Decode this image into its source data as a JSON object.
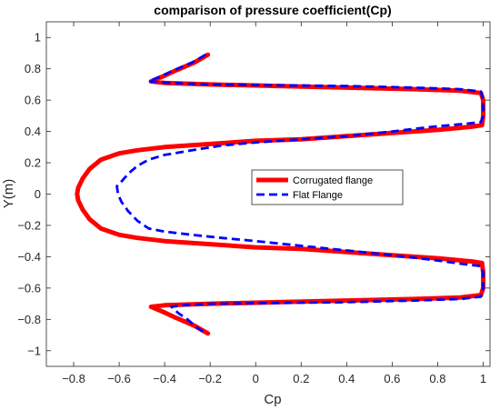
{
  "chart_data": {
    "type": "line",
    "title": "comparison of pressure coefficient(Cp)",
    "xlabel": "Cp",
    "ylabel": "Y(m)",
    "xlim": [
      -0.92,
      1.03
    ],
    "ylim": [
      -1.1,
      1.1
    ],
    "xticks": [
      -0.8,
      -0.6,
      -0.4,
      -0.2,
      0,
      0.2,
      0.4,
      0.6,
      0.8,
      1
    ],
    "xtick_labels": [
      "−0.8",
      "−0.6",
      "−0.4",
      "−0.2",
      "0",
      "0.2",
      "0.4",
      "0.6",
      "0.8",
      "1"
    ],
    "yticks": [
      1,
      0.8,
      0.6,
      0.4,
      0.2,
      0,
      -0.2,
      -0.4,
      -0.6,
      -0.8,
      -1
    ],
    "ytick_labels": [
      "1",
      "0.8",
      "0.6",
      "0.4",
      "0.2",
      "0",
      "−0.2",
      "−0.4",
      "−0.6",
      "−0.8",
      "−1"
    ],
    "grid": false,
    "legend_position": "center-right",
    "series": [
      {
        "name": "Corrugated flange",
        "color": "#ff0000",
        "style": "solid",
        "points": [
          [
            -0.21,
            0.89
          ],
          [
            -0.27,
            0.84
          ],
          [
            -0.35,
            0.79
          ],
          [
            -0.41,
            0.75
          ],
          [
            -0.46,
            0.72
          ],
          [
            -0.4,
            0.71
          ],
          [
            -0.2,
            0.7
          ],
          [
            0.1,
            0.69
          ],
          [
            0.4,
            0.68
          ],
          [
            0.7,
            0.67
          ],
          [
            0.9,
            0.66
          ],
          [
            0.99,
            0.645
          ],
          [
            1.0,
            0.6
          ],
          [
            1.0,
            0.5
          ],
          [
            0.995,
            0.44
          ],
          [
            0.95,
            0.43
          ],
          [
            0.8,
            0.41
          ],
          [
            0.6,
            0.39
          ],
          [
            0.4,
            0.37
          ],
          [
            0.2,
            0.35
          ],
          [
            0.0,
            0.34
          ],
          [
            -0.2,
            0.32
          ],
          [
            -0.4,
            0.3
          ],
          [
            -0.52,
            0.28
          ],
          [
            -0.6,
            0.26
          ],
          [
            -0.68,
            0.22
          ],
          [
            -0.73,
            0.16
          ],
          [
            -0.76,
            0.1
          ],
          [
            -0.78,
            0.04
          ],
          [
            -0.785,
            0.0
          ],
          [
            -0.78,
            -0.04
          ],
          [
            -0.76,
            -0.1
          ],
          [
            -0.73,
            -0.16
          ],
          [
            -0.68,
            -0.22
          ],
          [
            -0.6,
            -0.26
          ],
          [
            -0.52,
            -0.28
          ],
          [
            -0.4,
            -0.3
          ],
          [
            -0.2,
            -0.32
          ],
          [
            0.0,
            -0.34
          ],
          [
            0.2,
            -0.35
          ],
          [
            0.4,
            -0.37
          ],
          [
            0.6,
            -0.39
          ],
          [
            0.8,
            -0.41
          ],
          [
            0.95,
            -0.43
          ],
          [
            0.995,
            -0.44
          ],
          [
            1.0,
            -0.5
          ],
          [
            1.0,
            -0.6
          ],
          [
            0.99,
            -0.645
          ],
          [
            0.9,
            -0.66
          ],
          [
            0.7,
            -0.67
          ],
          [
            0.4,
            -0.68
          ],
          [
            0.1,
            -0.69
          ],
          [
            -0.2,
            -0.7
          ],
          [
            -0.4,
            -0.71
          ],
          [
            -0.46,
            -0.72
          ],
          [
            -0.41,
            -0.75
          ],
          [
            -0.35,
            -0.79
          ],
          [
            -0.27,
            -0.84
          ],
          [
            -0.21,
            -0.89
          ]
        ]
      },
      {
        "name": "Flat Flange",
        "color": "#0000ff",
        "style": "dashed",
        "points": [
          [
            -0.22,
            0.89
          ],
          [
            -0.28,
            0.84
          ],
          [
            -0.36,
            0.79
          ],
          [
            -0.42,
            0.75
          ],
          [
            -0.47,
            0.72
          ],
          [
            -0.38,
            0.71
          ],
          [
            -0.2,
            0.7
          ],
          [
            0.1,
            0.695
          ],
          [
            0.4,
            0.69
          ],
          [
            0.7,
            0.68
          ],
          [
            0.9,
            0.67
          ],
          [
            0.99,
            0.655
          ],
          [
            1.0,
            0.6
          ],
          [
            1.0,
            0.5
          ],
          [
            0.99,
            0.46
          ],
          [
            0.93,
            0.45
          ],
          [
            0.78,
            0.43
          ],
          [
            0.6,
            0.4
          ],
          [
            0.4,
            0.37
          ],
          [
            0.2,
            0.35
          ],
          [
            0.0,
            0.33
          ],
          [
            -0.15,
            0.31
          ],
          [
            -0.28,
            0.28
          ],
          [
            -0.4,
            0.25
          ],
          [
            -0.47,
            0.22
          ],
          [
            -0.52,
            0.18
          ],
          [
            -0.56,
            0.13
          ],
          [
            -0.59,
            0.08
          ],
          [
            -0.61,
            0.05
          ],
          [
            -0.605,
            0.0
          ],
          [
            -0.59,
            -0.05
          ],
          [
            -0.56,
            -0.11
          ],
          [
            -0.52,
            -0.17
          ],
          [
            -0.47,
            -0.22
          ],
          [
            -0.4,
            -0.24
          ],
          [
            -0.28,
            -0.26
          ],
          [
            -0.15,
            -0.28
          ],
          [
            0.0,
            -0.3
          ],
          [
            0.2,
            -0.33
          ],
          [
            0.4,
            -0.36
          ],
          [
            0.6,
            -0.39
          ],
          [
            0.78,
            -0.42
          ],
          [
            0.93,
            -0.45
          ],
          [
            0.99,
            -0.46
          ],
          [
            1.0,
            -0.5
          ],
          [
            1.0,
            -0.6
          ],
          [
            0.99,
            -0.655
          ],
          [
            0.9,
            -0.67
          ],
          [
            0.7,
            -0.68
          ],
          [
            0.4,
            -0.69
          ],
          [
            0.1,
            -0.695
          ],
          [
            -0.2,
            -0.7
          ],
          [
            -0.32,
            -0.71
          ],
          [
            -0.37,
            -0.72
          ],
          [
            -0.34,
            -0.76
          ],
          [
            -0.3,
            -0.8
          ],
          [
            -0.26,
            -0.85
          ],
          [
            -0.22,
            -0.89
          ]
        ]
      }
    ]
  }
}
